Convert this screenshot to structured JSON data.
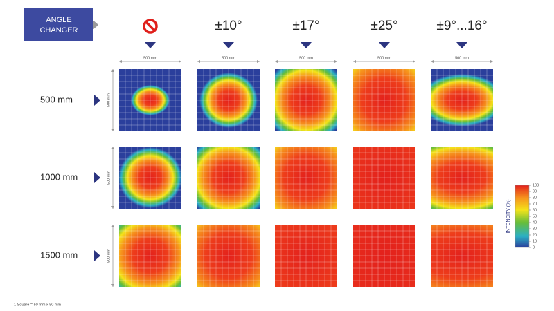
{
  "header": {
    "title_lines": [
      "ANGLE",
      "CHANGER"
    ]
  },
  "columns": [
    "±10°",
    "±17°",
    "±25°",
    "±9°...16°"
  ],
  "width_label": "500 mm",
  "height_label": "500 mm",
  "rows": [
    "500 mm",
    "1000 mm",
    "1500 mm"
  ],
  "colorbar": {
    "title": "INTENSITY (%)",
    "ticks": [
      0,
      10,
      20,
      30,
      40,
      50,
      60,
      70,
      80,
      90,
      100
    ]
  },
  "footnote": "1 Square = 50 mm x 50 mm"
}
